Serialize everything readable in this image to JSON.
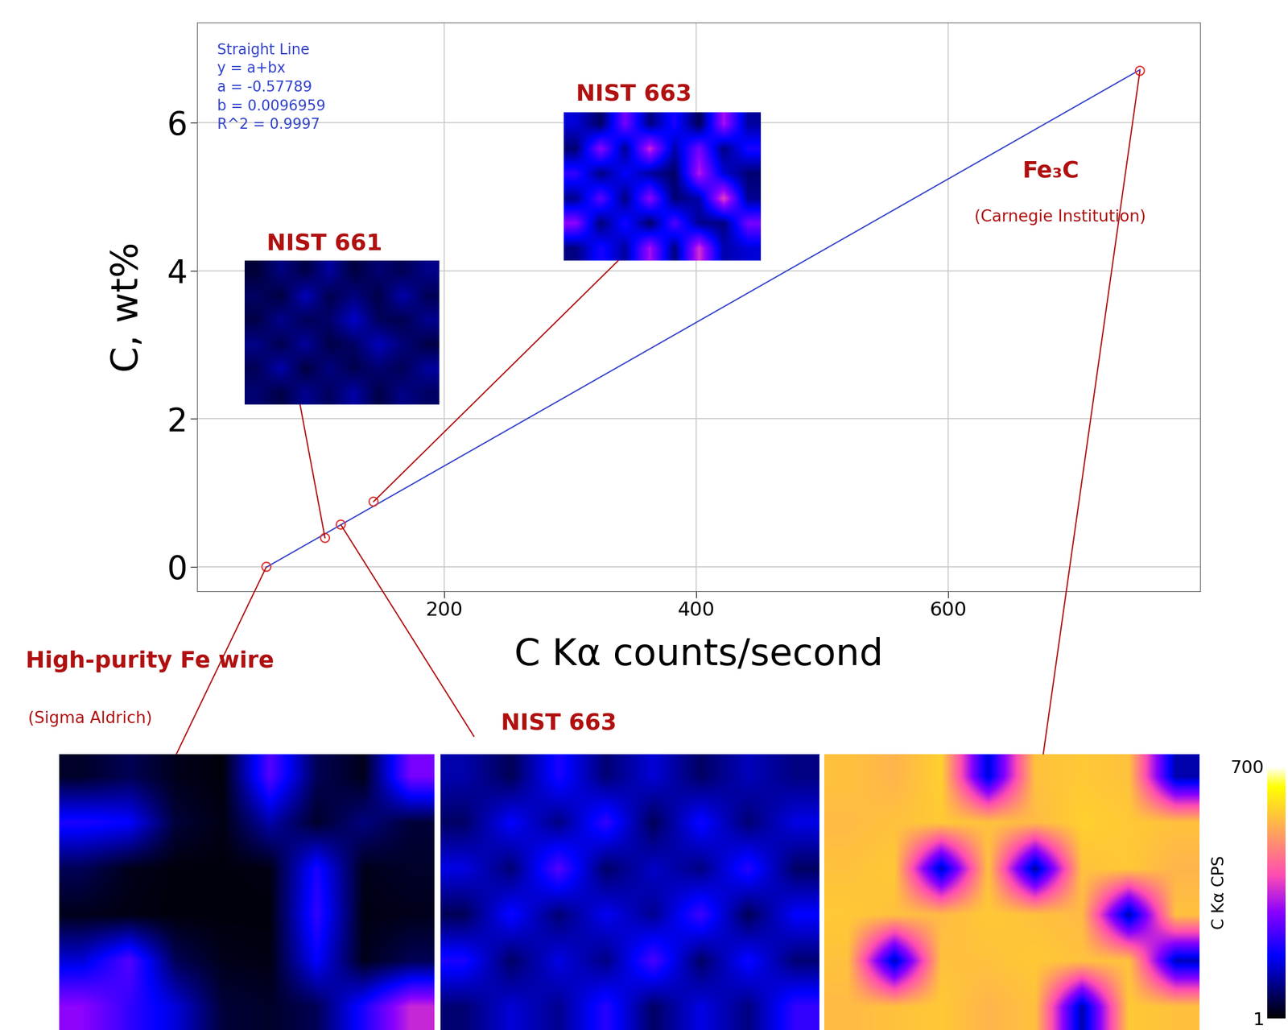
{
  "chart_data": {
    "type": "scatter",
    "x_label": "C Kα counts/second",
    "y_label": "C, wt%",
    "x": [
      59,
      105.5,
      118,
      144,
      752
    ],
    "values": [
      0,
      0.39,
      0.57,
      0.88,
      6.7
    ],
    "labels": [
      "High-purity Fe wire",
      "NIST 661",
      "NIST 663",
      "NIST 663",
      "Fe₃C"
    ],
    "notes": [
      "(Sigma Aldrich)",
      null,
      null,
      null,
      "(Carnegie Institution)"
    ],
    "color": "#e03030",
    "marker": "o",
    "fit": {
      "type": "line",
      "color": "#3344cc",
      "a": -0.57789,
      "b": 0.0096959,
      "text": [
        "Straight Line",
        "y = a+bx",
        "a = -0.57789",
        "b = 0.0096959",
        "R^2 = 0.9997"
      ]
    },
    "xlim": [
      4,
      800
    ],
    "ylim": [
      -0.33,
      7.35
    ],
    "xticks": [
      200,
      400,
      600
    ],
    "yticks": [
      0,
      2,
      4,
      6
    ],
    "grid": true,
    "maps": [
      [
        [
          30,
          60,
          20,
          10,
          250,
          60,
          20,
          280
        ],
        [
          200,
          180,
          40,
          15,
          120,
          30,
          90,
          40
        ],
        [
          60,
          20,
          10,
          10,
          15,
          200,
          20,
          30
        ],
        [
          20,
          15,
          10,
          10,
          10,
          220,
          15,
          20
        ],
        [
          150,
          250,
          60,
          20,
          15,
          180,
          20,
          60
        ],
        [
          300,
          220,
          150,
          40,
          30,
          60,
          200,
          350
        ]
      ],
      [
        [
          40,
          90,
          50,
          110,
          45,
          80,
          60,
          95
        ],
        [
          70,
          45,
          130,
          55,
          90,
          50,
          120,
          60
        ],
        [
          50,
          100,
          60,
          75,
          140,
          65,
          55,
          100
        ],
        [
          95,
          55,
          110,
          50,
          70,
          130,
          85,
          50
        ],
        [
          60,
          120,
          45,
          90,
          55,
          80,
          60,
          110
        ],
        [
          80,
          50,
          100,
          65,
          115,
          50,
          95,
          70
        ]
      ],
      [
        [
          120,
          60,
          200,
          80,
          150,
          70,
          130,
          90
        ],
        [
          70,
          180,
          90,
          220,
          60,
          190,
          80,
          160
        ],
        [
          160,
          80,
          250,
          70,
          140,
          90,
          210,
          70
        ],
        [
          60,
          190,
          80,
          170,
          100,
          230,
          60,
          180
        ],
        [
          200,
          70,
          160,
          90,
          240,
          70,
          190,
          80
        ],
        [
          80,
          150,
          100,
          210,
          70,
          160,
          90,
          220
        ]
      ],
      [
        [
          150,
          70,
          280,
          90,
          200,
          60,
          320,
          110
        ],
        [
          80,
          300,
          100,
          350,
          120,
          280,
          90,
          200
        ],
        [
          220,
          90,
          180,
          110,
          70,
          330,
          150,
          80
        ],
        [
          100,
          260,
          90,
          300,
          80,
          120,
          380,
          100
        ],
        [
          300,
          80,
          200,
          70,
          250,
          100,
          90,
          280
        ],
        [
          90,
          200,
          110,
          320,
          90,
          360,
          120,
          150
        ]
      ],
      [
        [
          560,
          540,
          580,
          150,
          560,
          570,
          560,
          120
        ],
        [
          550,
          560,
          570,
          560,
          550,
          580,
          570,
          560
        ],
        [
          560,
          570,
          130,
          560,
          110,
          560,
          570,
          540
        ],
        [
          570,
          560,
          550,
          570,
          560,
          550,
          120,
          560
        ],
        [
          560,
          130,
          560,
          560,
          570,
          560,
          560,
          130
        ],
        [
          550,
          560,
          570,
          540,
          560,
          120,
          570,
          560
        ]
      ]
    ],
    "colorbar": {
      "label": "C Kα CPS",
      "range": [
        1,
        700
      ],
      "ticks": [
        1,
        700
      ]
    }
  }
}
